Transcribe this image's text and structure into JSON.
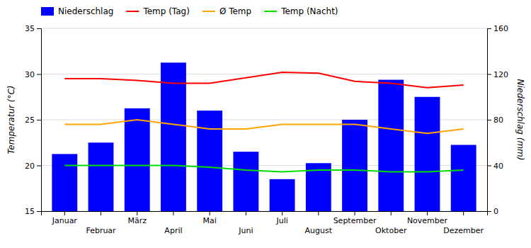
{
  "chart_data": {
    "type": "bar",
    "categories": [
      "Januar",
      "Februar",
      "März",
      "April",
      "Mai",
      "Juni",
      "Juli",
      "August",
      "September",
      "Oktober",
      "November",
      "Dezember"
    ],
    "series": [
      {
        "name": "Niederschlag",
        "type": "bar",
        "axis": "y2",
        "color": "#0000ff",
        "values": [
          50,
          60,
          90,
          130,
          88,
          52,
          28,
          42,
          80,
          115,
          100,
          58
        ]
      },
      {
        "name": "Temp (Tag)",
        "type": "line",
        "color": "#ff0000",
        "values": [
          29.5,
          29.5,
          29.3,
          29.0,
          29.0,
          29.6,
          30.2,
          30.1,
          29.2,
          29.0,
          28.5,
          28.8
        ]
      },
      {
        "name": "Ø Temp",
        "type": "line",
        "color": "#ffa500",
        "values": [
          24.5,
          24.5,
          25.0,
          24.5,
          24.0,
          24.0,
          24.5,
          24.5,
          24.5,
          24.0,
          23.5,
          24.0
        ]
      },
      {
        "name": "Temp (Nacht)",
        "type": "line",
        "color": "#00dd00",
        "values": [
          20.0,
          20.0,
          20.0,
          20.0,
          19.8,
          19.5,
          19.3,
          19.5,
          19.5,
          19.3,
          19.3,
          19.5
        ]
      }
    ],
    "ylabel": "Temperatur (°C)",
    "y2label": "Niederschlag (mm)",
    "ylim": [
      15,
      35
    ],
    "yticks": [
      15,
      20,
      25,
      30,
      35
    ],
    "y2lim": [
      0,
      160
    ],
    "y2ticks": [
      0,
      40,
      80,
      120,
      160
    ],
    "grid": true,
    "legend": "top"
  }
}
